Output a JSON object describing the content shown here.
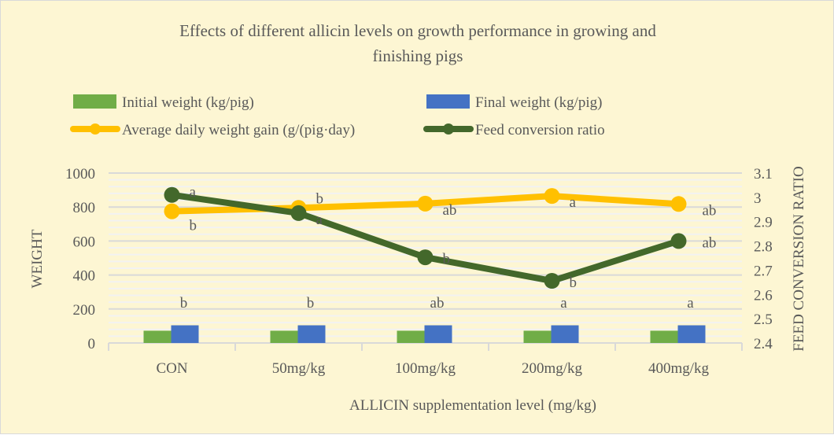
{
  "chart_data": {
    "type": "bar+line",
    "title_lines": [
      "Effects of different allicin levels on growth performance in growing and",
      "finishing pigs"
    ],
    "xlabel": "ALLICIN supplementation level (mg/kg)",
    "ylabel": "WEIGHT",
    "y2label": "FEED CONVERSION RATIO",
    "categories": [
      "CON",
      "50mg/kg",
      "100mg/kg",
      "200mg/kg",
      "400mg/kg"
    ],
    "ylim": [
      0,
      1000
    ],
    "y_ticks": [
      0,
      200,
      400,
      600,
      800,
      1000
    ],
    "y_tick_labels": [
      "0",
      "200",
      "400",
      "600",
      "800",
      "1000"
    ],
    "y2lim": [
      2.4,
      3.1
    ],
    "y2_ticks": [
      2.4,
      2.5,
      2.6,
      2.7,
      2.8,
      2.9,
      3.0,
      3.1
    ],
    "y2_tick_labels": [
      "2.4",
      "2.5",
      "2.6",
      "2.7",
      "2.8",
      "2.9",
      "3",
      "3.1"
    ],
    "grid": true,
    "legend_position": "top",
    "series": [
      {
        "name": "Initial weight (kg/pig)",
        "kind": "bar",
        "axis": "left",
        "color": "#70AD47",
        "values": [
          72,
          72,
          72,
          72,
          72
        ]
      },
      {
        "name": "Final weight (kg/pig)",
        "kind": "bar",
        "axis": "left",
        "color": "#4472C4",
        "values": [
          104,
          104,
          104,
          104,
          104
        ],
        "labels": [
          "b",
          "b",
          "ab",
          "a",
          "a"
        ]
      },
      {
        "name": "Average daily weight gain (g/(pig·day)",
        "kind": "line",
        "axis": "left",
        "color": "#FFC000",
        "values": [
          775,
          795,
          820,
          865,
          818
        ],
        "labels": [
          "b",
          "b",
          "ab",
          "a",
          "ab"
        ]
      },
      {
        "name": "Feed conversion ratio",
        "kind": "line",
        "axis": "right",
        "color": "#43682B",
        "values": [
          3.01,
          2.935,
          2.753,
          2.656,
          2.82
        ],
        "labels": [
          "a",
          "a",
          "b",
          "b",
          "ab"
        ]
      }
    ],
    "colors": {
      "background": "#FDF6D3",
      "grid_major": "#D9D9D9",
      "grid_minor": "#F2F2F2",
      "text": "#595959"
    }
  }
}
